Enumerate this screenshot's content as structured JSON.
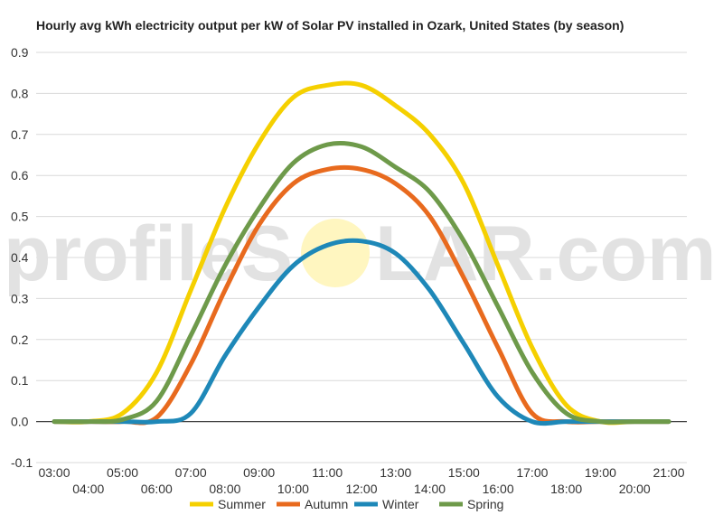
{
  "chart_data": {
    "type": "line",
    "title": "Hourly avg kWh electricity output per kW of Solar PV installed in Ozark, United States (by season)",
    "xlabel": "",
    "ylabel": "",
    "ylim": [
      -0.1,
      0.9
    ],
    "yticks": [
      "-0.1",
      "0.0",
      "0.1",
      "0.2",
      "0.3",
      "0.4",
      "0.5",
      "0.6",
      "0.7",
      "0.8",
      "0.9"
    ],
    "xticks_top": [
      "03:00",
      "05:00",
      "07:00",
      "09:00",
      "11:00",
      "13:00",
      "15:00",
      "17:00",
      "19:00",
      "21:00"
    ],
    "xticks_bottom": [
      "04:00",
      "06:00",
      "08:00",
      "10:00",
      "12:00",
      "14:00",
      "16:00",
      "18:00",
      "20:00"
    ],
    "x": [
      3,
      4,
      5,
      6,
      7,
      8,
      9,
      10,
      11,
      12,
      13,
      14,
      15,
      16,
      17,
      18,
      19,
      20,
      21
    ],
    "grid": true,
    "legend_position": "bottom",
    "series": [
      {
        "name": "Summer",
        "color": "#f5d000",
        "values": [
          0.0,
          0.0,
          0.02,
          0.12,
          0.32,
          0.52,
          0.68,
          0.79,
          0.82,
          0.82,
          0.77,
          0.7,
          0.58,
          0.38,
          0.18,
          0.04,
          0.0,
          0.0,
          0.0
        ]
      },
      {
        "name": "Autumn",
        "color": "#e86a1e",
        "values": [
          0.0,
          0.0,
          0.0,
          0.01,
          0.14,
          0.32,
          0.48,
          0.58,
          0.615,
          0.615,
          0.58,
          0.5,
          0.35,
          0.18,
          0.02,
          0.0,
          0.0,
          0.0,
          0.0
        ]
      },
      {
        "name": "Winter",
        "color": "#1e88b8",
        "values": [
          0.0,
          0.0,
          0.0,
          0.0,
          0.02,
          0.16,
          0.28,
          0.38,
          0.43,
          0.44,
          0.41,
          0.32,
          0.19,
          0.06,
          0.0,
          0.0,
          0.0,
          0.0,
          0.0
        ]
      },
      {
        "name": "Spring",
        "color": "#6e9a4a",
        "values": [
          0.0,
          0.0,
          0.005,
          0.05,
          0.21,
          0.38,
          0.52,
          0.63,
          0.675,
          0.67,
          0.62,
          0.56,
          0.44,
          0.28,
          0.12,
          0.02,
          0.0,
          0.0,
          0.0
        ]
      }
    ]
  },
  "watermark": {
    "left_text": "profileS",
    "right_text": "LAR.com",
    "sun_color": "#fff6c0"
  }
}
